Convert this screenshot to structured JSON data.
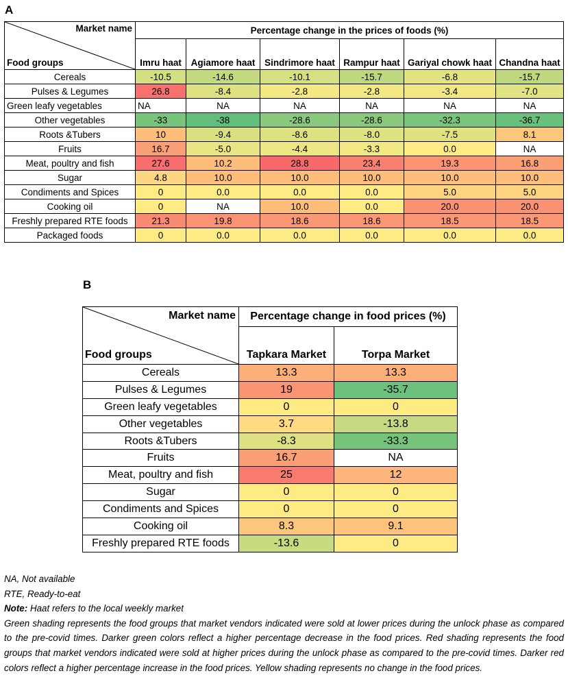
{
  "panels": {
    "a": {
      "label": "A",
      "header": "Percentage change in the prices of foods (%)",
      "corner": {
        "top": "Market name",
        "bottom": "Food groups"
      },
      "markets": [
        "Imru haat",
        "Agiamore haat",
        "Sindrimore haat",
        "Rampur haat",
        "Gariyal chowk haat",
        "Chandna haat"
      ],
      "rows": [
        {
          "food": "Cereals",
          "values": [
            "-10.5",
            "-14.6",
            "-10.1",
            "-15.7",
            "-6.8",
            "-15.7"
          ]
        },
        {
          "food": "Pulses & Legumes",
          "values": [
            "26.8",
            "-8.4",
            "-2.8",
            "-2.8",
            "-3.4",
            "-7.0"
          ]
        },
        {
          "food": "Green leafy vegetables",
          "values": [
            "NA",
            "NA",
            "NA",
            "NA",
            "NA",
            "NA"
          ]
        },
        {
          "food": "Other vegetables",
          "values": [
            "-33",
            "-38",
            "-28.6",
            "-28.6",
            "-32.3",
            "-36.7"
          ]
        },
        {
          "food": "Roots &Tubers",
          "values": [
            "10",
            "-9.4",
            "-8.6",
            "-8.0",
            "-7.5",
            "8.1"
          ]
        },
        {
          "food": "Fruits",
          "values": [
            "16.7",
            "-5.0",
            "-4.4",
            "-3.3",
            "0.0",
            "NA"
          ]
        },
        {
          "food": "Meat, poultry and fish",
          "values": [
            "27.6",
            "10.2",
            "28.8",
            "23.4",
            "19.3",
            "16.8"
          ]
        },
        {
          "food": "Sugar",
          "values": [
            "4.8",
            "10.0",
            "10.0",
            "10.0",
            "10.0",
            "10.0"
          ]
        },
        {
          "food": "Condiments and Spices",
          "values": [
            "0",
            "0.0",
            "0.0",
            "0.0",
            "5.0",
            "5.0"
          ]
        },
        {
          "food": "Cooking oil",
          "values": [
            "0",
            "NA",
            "10.0",
            "0.0",
            "20.0",
            "20.0"
          ]
        },
        {
          "food": "Freshly prepared RTE foods",
          "values": [
            "21.3",
            "19.8",
            "18.6",
            "18.6",
            "18.5",
            "18.5"
          ]
        },
        {
          "food": "Packaged foods",
          "values": [
            "0",
            "0.0",
            "0.0",
            "0.0",
            "0.0",
            "0.0"
          ]
        }
      ]
    },
    "b": {
      "label": "B",
      "header": "Percentage change in food prices (%)",
      "corner": {
        "top": "Market name",
        "bottom": "Food groups"
      },
      "markets": [
        "Tapkara Market",
        "Torpa Market"
      ],
      "rows": [
        {
          "food": "Cereals",
          "values": [
            "13.3",
            "13.3"
          ]
        },
        {
          "food": "Pulses & Legumes",
          "values": [
            "19",
            "-35.7"
          ]
        },
        {
          "food": "Green leafy vegetables",
          "values": [
            "0",
            "0"
          ]
        },
        {
          "food": "Other vegetables",
          "values": [
            "3.7",
            "-13.8"
          ]
        },
        {
          "food": "Roots &Tubers",
          "values": [
            "-8.3",
            "-33.3"
          ]
        },
        {
          "food": "Fruits",
          "values": [
            "16.7",
            "NA"
          ]
        },
        {
          "food": "Meat, poultry and fish",
          "values": [
            "25",
            "12"
          ]
        },
        {
          "food": "Sugar",
          "values": [
            "0",
            "0"
          ]
        },
        {
          "food": "Condiments and Spices",
          "values": [
            "0",
            "0"
          ]
        },
        {
          "food": "Cooking oil",
          "values": [
            "8.3",
            "9.1"
          ]
        },
        {
          "food": "Freshly prepared RTE foods",
          "values": [
            "-13.6",
            "0"
          ]
        }
      ]
    }
  },
  "notes": {
    "na": "NA, Not available",
    "rte": "RTE, Ready-to-eat",
    "note_label": "Note:",
    "note_text": " Haat refers to the local weekly market",
    "shading": "Green shading represents the food groups that market vendors indicated were sold at lower prices during the unlock phase as compared to the pre-covid times. Darker green colors reflect a higher percentage decrease in the food prices. Red shading represents the food groups that market vendors indicated were sold at higher prices during the unlock phase as compared to the pre-covid times. Darker red colors reflect a higher percentage increase in the food prices. Yellow shading represents no change in the food prices."
  },
  "colors": {
    "green_dark": "#63be7b",
    "yellow": "#ffeb84",
    "red_dark": "#f8696b",
    "na_background": "#ffffff"
  }
}
